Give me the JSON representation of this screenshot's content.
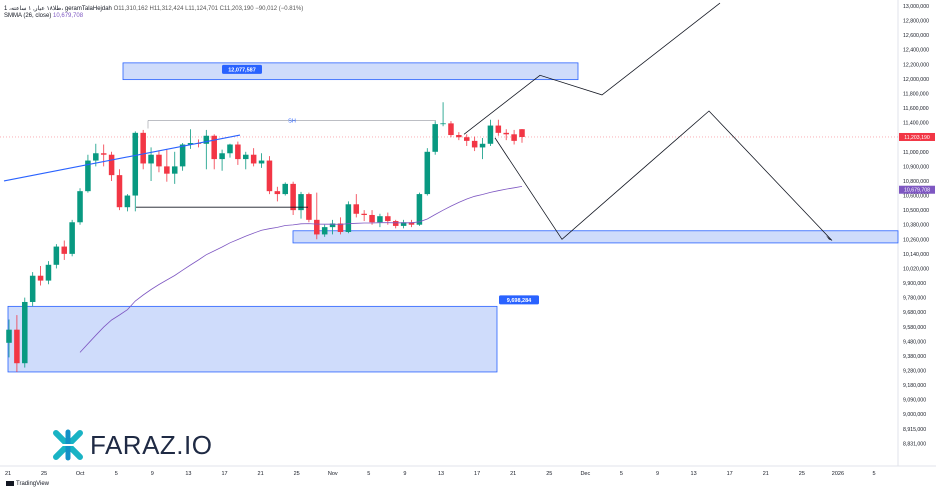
{
  "header": {
    "symbol_line": "1 ،طلا۱۸ عیار, ۱ ساعته، geramTalaHejdah",
    "ohlc": "O11,310,162  H11,312,424  L11,124,701  C11,203,190  −90,012 (−0.81%)",
    "ma_line_label": "SMMA (26, close)",
    "ma_line_value": "10,679,708"
  },
  "branding": {
    "logo_text": "FARAZ.IO",
    "footer": "TradingView"
  },
  "chart_data": {
    "type": "candlestick",
    "y_axis": {
      "ticks": [
        13000000,
        12800000,
        12600000,
        12400000,
        12200000,
        12000000,
        11800000,
        11600000,
        11400000,
        11200000,
        11000000,
        10900000,
        10800000,
        10600000,
        10500000,
        10380000,
        10260000,
        10140000,
        10020000,
        9900000,
        9780000,
        9680000,
        9580000,
        9480000,
        9380000,
        9280000,
        9180000,
        9090000,
        9000000,
        8915000,
        8831000
      ],
      "tick_labels": [
        "13,000,000",
        "12,800,000",
        "12,600,000",
        "12,400,000",
        "12,200,000",
        "12,000,000",
        "11,800,000",
        "11,600,000",
        "11,400,000",
        "11,200,000",
        "11,000,000",
        "10,900,000",
        "10,800,000",
        "10,600,000",
        "10,500,000",
        "10,380,000",
        "10,260,000",
        "10,140,000",
        "10,020,000",
        "9,900,000",
        "9,780,000",
        "9,680,000",
        "9,580,000",
        "9,480,000",
        "9,380,000",
        "9,280,000",
        "9,180,000",
        "9,090,000",
        "9,000,000",
        "8,915,000",
        "8,831,000"
      ]
    },
    "x_axis": {
      "tick_labels": [
        "21",
        "25",
        "Oct",
        "5",
        "9",
        "13",
        "17",
        "21",
        "25",
        "Nov",
        "5",
        "9",
        "13",
        "17",
        "21",
        "25",
        "Dec",
        "5",
        "9",
        "13",
        "17",
        "21",
        "25",
        "2026",
        "5"
      ]
    },
    "last_price_label": "11,203,190",
    "ma_value_label": "10,679,708",
    "candles": [
      {
        "o": 9470000,
        "h": 9630000,
        "l": 9370000,
        "c": 9560000
      },
      {
        "o": 9560000,
        "h": 9660000,
        "l": 9270000,
        "c": 9330000
      },
      {
        "o": 9330000,
        "h": 9780000,
        "l": 9300000,
        "c": 9750000
      },
      {
        "o": 9750000,
        "h": 9990000,
        "l": 9720000,
        "c": 9960000
      },
      {
        "o": 9960000,
        "h": 10040000,
        "l": 9880000,
        "c": 9920000
      },
      {
        "o": 9920000,
        "h": 10080000,
        "l": 9890000,
        "c": 10050000
      },
      {
        "o": 10050000,
        "h": 10220000,
        "l": 10020000,
        "c": 10200000
      },
      {
        "o": 10200000,
        "h": 10250000,
        "l": 10090000,
        "c": 10140000
      },
      {
        "o": 10140000,
        "h": 10420000,
        "l": 10120000,
        "c": 10400000
      },
      {
        "o": 10400000,
        "h": 10700000,
        "l": 10380000,
        "c": 10660000
      },
      {
        "o": 10660000,
        "h": 10980000,
        "l": 10640000,
        "c": 10940000
      },
      {
        "o": 10940000,
        "h": 11110000,
        "l": 10900000,
        "c": 10990000
      },
      {
        "o": 10990000,
        "h": 11100000,
        "l": 10900000,
        "c": 10980000
      },
      {
        "o": 10980000,
        "h": 11000000,
        "l": 10800000,
        "c": 10840000
      },
      {
        "o": 10840000,
        "h": 10880000,
        "l": 10500000,
        "c": 10520000
      },
      {
        "o": 10520000,
        "h": 10620000,
        "l": 10490000,
        "c": 10600000
      },
      {
        "o": 10600000,
        "h": 11280000,
        "l": 10490000,
        "c": 11260000
      },
      {
        "o": 11260000,
        "h": 11300000,
        "l": 10880000,
        "c": 10920000
      },
      {
        "o": 10920000,
        "h": 11060000,
        "l": 10800000,
        "c": 10980000
      },
      {
        "o": 10980000,
        "h": 11020000,
        "l": 10860000,
        "c": 10900000
      },
      {
        "o": 10900000,
        "h": 11030000,
        "l": 10790000,
        "c": 10850000
      },
      {
        "o": 10850000,
        "h": 11000000,
        "l": 10760000,
        "c": 10900000
      },
      {
        "o": 10900000,
        "h": 11120000,
        "l": 10870000,
        "c": 11100000
      },
      {
        "o": 11100000,
        "h": 11310000,
        "l": 11040000,
        "c": 11120000
      },
      {
        "o": 11120000,
        "h": 11170000,
        "l": 11060000,
        "c": 11110000
      },
      {
        "o": 11110000,
        "h": 11300000,
        "l": 10880000,
        "c": 11220000
      },
      {
        "o": 11220000,
        "h": 11240000,
        "l": 10880000,
        "c": 10950000
      },
      {
        "o": 10950000,
        "h": 11030000,
        "l": 10870000,
        "c": 10990000
      },
      {
        "o": 10990000,
        "h": 11110000,
        "l": 10960000,
        "c": 11100000
      },
      {
        "o": 11100000,
        "h": 11140000,
        "l": 10910000,
        "c": 10950000
      },
      {
        "o": 10950000,
        "h": 11000000,
        "l": 10880000,
        "c": 10980000
      },
      {
        "o": 10980000,
        "h": 11050000,
        "l": 10900000,
        "c": 10920000
      },
      {
        "o": 10920000,
        "h": 10990000,
        "l": 10890000,
        "c": 10940000
      },
      {
        "o": 10940000,
        "h": 10970000,
        "l": 10620000,
        "c": 10660000
      },
      {
        "o": 10660000,
        "h": 10720000,
        "l": 10560000,
        "c": 10620000
      },
      {
        "o": 10620000,
        "h": 10780000,
        "l": 10600000,
        "c": 10760000
      },
      {
        "o": 10760000,
        "h": 10790000,
        "l": 10460000,
        "c": 10500000
      },
      {
        "o": 10500000,
        "h": 10650000,
        "l": 10430000,
        "c": 10620000
      },
      {
        "o": 10620000,
        "h": 10640000,
        "l": 10400000,
        "c": 10420000
      },
      {
        "o": 10420000,
        "h": 10640000,
        "l": 10260000,
        "c": 10300000
      },
      {
        "o": 10300000,
        "h": 10380000,
        "l": 10280000,
        "c": 10360000
      },
      {
        "o": 10360000,
        "h": 10420000,
        "l": 10300000,
        "c": 10390000
      },
      {
        "o": 10390000,
        "h": 10440000,
        "l": 10300000,
        "c": 10320000
      },
      {
        "o": 10320000,
        "h": 10560000,
        "l": 10310000,
        "c": 10540000
      },
      {
        "o": 10540000,
        "h": 10620000,
        "l": 10440000,
        "c": 10470000
      },
      {
        "o": 10470000,
        "h": 10500000,
        "l": 10410000,
        "c": 10460000
      },
      {
        "o": 10460000,
        "h": 10500000,
        "l": 10380000,
        "c": 10400000
      },
      {
        "o": 10400000,
        "h": 10470000,
        "l": 10360000,
        "c": 10450000
      },
      {
        "o": 10450000,
        "h": 10480000,
        "l": 10380000,
        "c": 10410000
      },
      {
        "o": 10410000,
        "h": 10420000,
        "l": 10350000,
        "c": 10370000
      },
      {
        "o": 10370000,
        "h": 10420000,
        "l": 10350000,
        "c": 10400000
      },
      {
        "o": 10400000,
        "h": 10420000,
        "l": 10360000,
        "c": 10380000
      },
      {
        "o": 10380000,
        "h": 10640000,
        "l": 10370000,
        "c": 10620000
      },
      {
        "o": 10620000,
        "h": 11050000,
        "l": 10600000,
        "c": 11000000
      },
      {
        "o": 11000000,
        "h": 11420000,
        "l": 10980000,
        "c": 11380000
      },
      {
        "o": 11380000,
        "h": 11680000,
        "l": 11350000,
        "c": 11390000
      },
      {
        "o": 11390000,
        "h": 11420000,
        "l": 11200000,
        "c": 11230000
      },
      {
        "o": 11230000,
        "h": 11270000,
        "l": 11160000,
        "c": 11200000
      },
      {
        "o": 11200000,
        "h": 11240000,
        "l": 11080000,
        "c": 11150000
      },
      {
        "o": 11150000,
        "h": 11210000,
        "l": 11010000,
        "c": 11060000
      },
      {
        "o": 11060000,
        "h": 11190000,
        "l": 10950000,
        "c": 11110000
      },
      {
        "o": 11110000,
        "h": 11440000,
        "l": 11080000,
        "c": 11360000
      },
      {
        "o": 11360000,
        "h": 11440000,
        "l": 11220000,
        "c": 11260000
      },
      {
        "o": 11260000,
        "h": 11310000,
        "l": 11160000,
        "c": 11240000
      },
      {
        "o": 11240000,
        "h": 11300000,
        "l": 11100000,
        "c": 11150000
      },
      {
        "o": 11310162,
        "h": 11312424,
        "l": 11124701,
        "c": 11203190
      }
    ],
    "zones": [
      {
        "label": "12,077,587",
        "y_top": 12220000,
        "y_bottom": 11990000,
        "label_price": 12077587
      },
      {
        "label": "",
        "y_top": 10330000,
        "y_bottom": 10230000
      },
      {
        "label": "9,698,284",
        "y_top": 9720000,
        "y_bottom": 9270000,
        "label_price": 9698284
      }
    ],
    "annotations": {
      "sh_label": "SH",
      "sh_level": 11430000
    },
    "grid": false
  },
  "colors": {
    "up": "#089981",
    "down": "#f23645",
    "zone_fill": "#a7c0f7",
    "zone_border": "#2962ff",
    "ma": "#7e57c2",
    "trend": "#2962ff"
  }
}
